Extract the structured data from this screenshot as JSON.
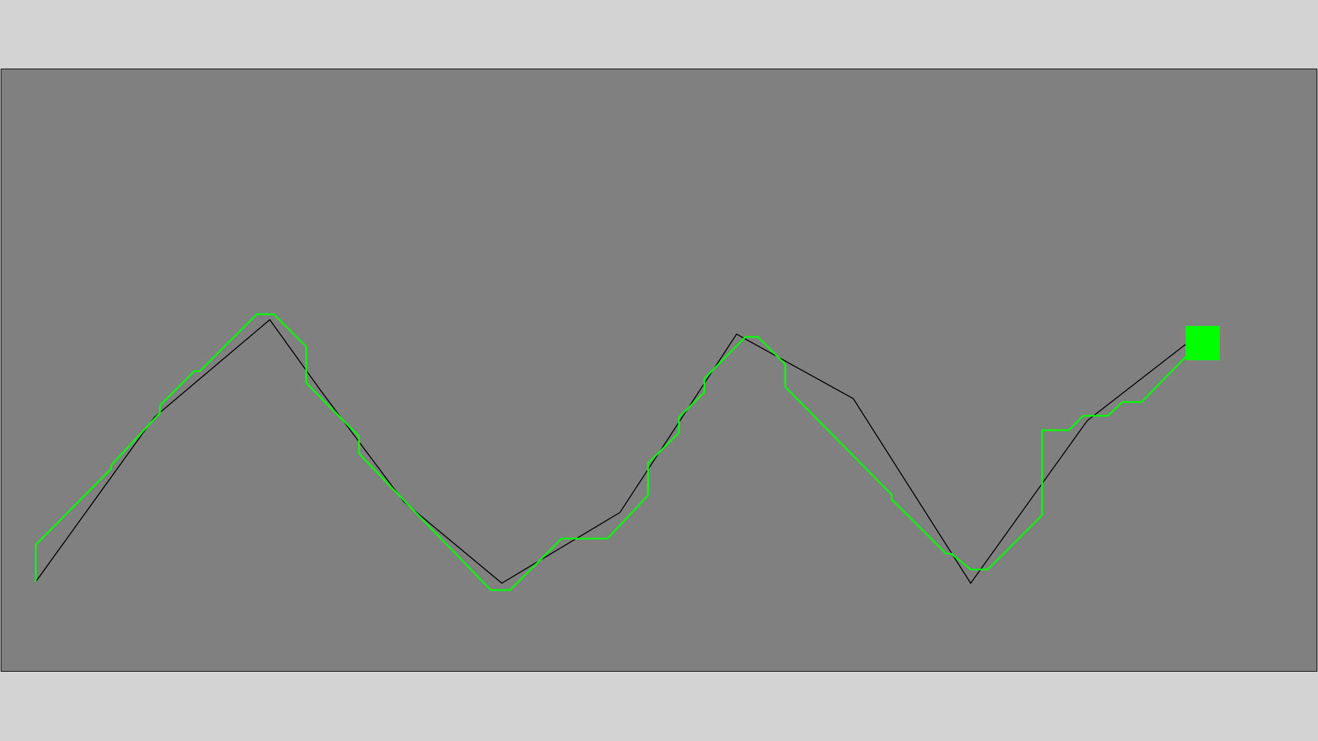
{
  "game": {
    "colors": {
      "page_background": "#d3d3d3",
      "board_background": "#808080",
      "board_border": "#000000",
      "target_path": "#000000",
      "player_trail": "#00ff00",
      "player_marker": "#00ff00"
    },
    "icons": {
      "player_marker": "green-square"
    }
  }
}
